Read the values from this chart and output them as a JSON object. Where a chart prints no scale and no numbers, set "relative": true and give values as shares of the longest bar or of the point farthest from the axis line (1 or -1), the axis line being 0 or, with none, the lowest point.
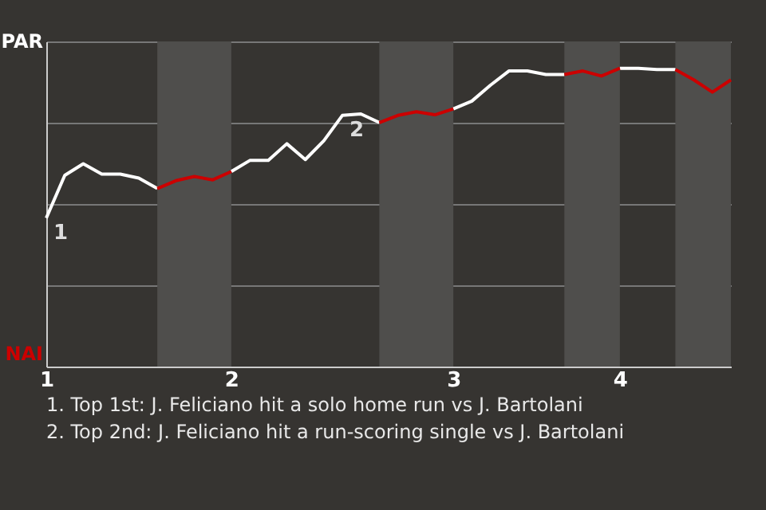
{
  "chart_data": {
    "type": "line",
    "relative": true,
    "categories": [
      "1",
      null,
      null,
      null,
      null,
      null,
      null,
      null,
      null,
      null,
      "2",
      null,
      null,
      null,
      null,
      null,
      null,
      null,
      null,
      null,
      null,
      null,
      "3",
      null,
      null,
      null,
      null,
      null,
      null,
      null,
      null,
      "4",
      null,
      null,
      null,
      null,
      null,
      null
    ],
    "series": [
      {
        "color": "#ffffff",
        "values": [
          0.498,
          0.641,
          0.68,
          0.645,
          0.645,
          0.632,
          0.597,
          null,
          null,
          null,
          0.654,
          0.691,
          0.691,
          0.747,
          0.694,
          0.757,
          0.842,
          0.847,
          0.818,
          null,
          null,
          null,
          0.864,
          0.89,
          0.943,
          0.991,
          0.991,
          0.979,
          0.979,
          null,
          null,
          1,
          1,
          0.996,
          0.996,
          null,
          null,
          null
        ]
      },
      {
        "color": "#cc0000",
        "values": [
          null,
          null,
          null,
          null,
          null,
          null,
          0.597,
          0.623,
          0.637,
          0.626,
          0.654,
          null,
          null,
          null,
          null,
          null,
          null,
          null,
          0.818,
          0.842,
          0.854,
          0.844,
          0.864,
          null,
          null,
          null,
          null,
          null,
          0.979,
          0.991,
          0.974,
          1,
          null,
          null,
          0.996,
          0.961,
          0.92,
          0.961
        ]
      }
    ],
    "annotations": [
      "PAR",
      "NAI",
      {
        "text": "1",
        "x": "1",
        "y": 0.498
      },
      {
        "text": "2",
        "y": 0.842
      },
      "1. Top 1st: J. Feliciano hit a solo home run vs J. Bartolani",
      "2. Top 2nd: J. Feliciano hit a run-scoring single vs J. Bartolani"
    ],
    "grid": "y",
    "marker": "none"
  }
}
